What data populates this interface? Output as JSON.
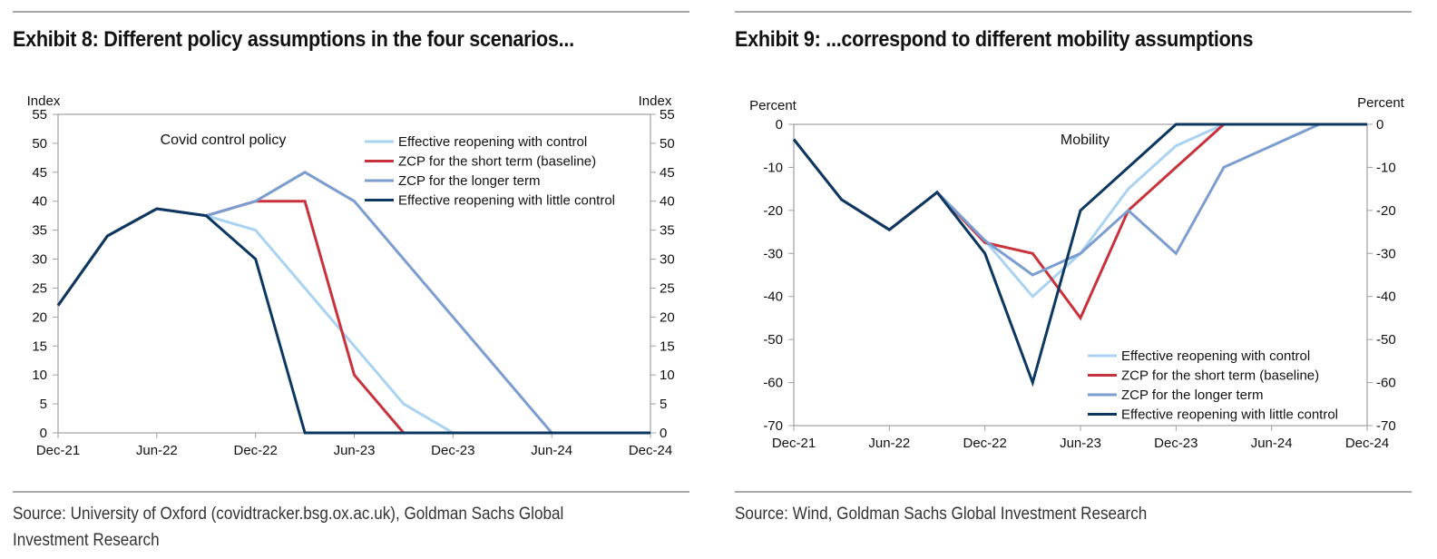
{
  "exhibit8": {
    "title": "Exhibit 8: Different policy assumptions in the four scenarios...",
    "source": "Source: University of Oxford (covidtracker.bsg.ox.ac.uk), Goldman Sachs Global Investment Research"
  },
  "exhibit9": {
    "title": "Exhibit 9: ...correspond to different mobility assumptions",
    "source": "Source: Wind, Goldman Sachs Global Investment Research"
  },
  "colors": {
    "light_blue": "#a9d3f0",
    "red": "#c8323a",
    "mid_blue": "#7b9dcf",
    "navy": "#0c3761",
    "axis": "#a0a0a0"
  },
  "chart_data": [
    {
      "type": "line",
      "title": "Covid control policy",
      "ylabel": "Index",
      "ylabel_right": "Index",
      "ylim": [
        0,
        55
      ],
      "yticks": [
        0,
        5,
        10,
        15,
        20,
        25,
        30,
        35,
        40,
        45,
        50,
        55
      ],
      "xlim": [
        0,
        36
      ],
      "xticks": [
        {
          "x": 0,
          "label": "Dec-21"
        },
        {
          "x": 6,
          "label": "Jun-22"
        },
        {
          "x": 12,
          "label": "Dec-22"
        },
        {
          "x": 18,
          "label": "Jun-23"
        },
        {
          "x": 24,
          "label": "Dec-23"
        },
        {
          "x": 30,
          "label": "Jun-24"
        },
        {
          "x": 36,
          "label": "Dec-24"
        }
      ],
      "legend_position": "top-right",
      "series": [
        {
          "name": "Effective reopening with control",
          "color": "#a9d3f0",
          "x": [
            0,
            3,
            6,
            9,
            12,
            15,
            18,
            21,
            24,
            36
          ],
          "values": [
            22,
            34,
            38.7,
            37.5,
            35,
            25,
            15,
            5,
            0,
            0
          ]
        },
        {
          "name": "ZCP for the short term (baseline)",
          "color": "#c8323a",
          "x": [
            0,
            3,
            6,
            9,
            12,
            15,
            18,
            21,
            36
          ],
          "values": [
            22,
            34,
            38.7,
            37.5,
            40,
            40,
            10,
            0,
            0
          ]
        },
        {
          "name": "ZCP for the longer term",
          "color": "#7b9dcf",
          "x": [
            0,
            3,
            6,
            9,
            12,
            15,
            18,
            30,
            36
          ],
          "values": [
            22,
            34,
            38.7,
            37.5,
            40,
            45,
            40,
            0,
            0
          ]
        },
        {
          "name": "Effective reopening with little control",
          "color": "#0c3761",
          "x": [
            0,
            3,
            6,
            9,
            12,
            15,
            36
          ],
          "values": [
            22,
            34,
            38.7,
            37.5,
            30,
            0,
            0
          ]
        }
      ]
    },
    {
      "type": "line",
      "title": "Mobility",
      "ylabel": "Percent",
      "ylabel_right": "Percent",
      "ylim": [
        -70,
        0
      ],
      "yticks": [
        -70,
        -60,
        -50,
        -40,
        -30,
        -20,
        -10,
        0
      ],
      "xlim": [
        0,
        36
      ],
      "xticks": [
        {
          "x": 0,
          "label": "Dec-21"
        },
        {
          "x": 6,
          "label": "Jun-22"
        },
        {
          "x": 12,
          "label": "Dec-22"
        },
        {
          "x": 18,
          "label": "Jun-23"
        },
        {
          "x": 24,
          "label": "Dec-23"
        },
        {
          "x": 30,
          "label": "Jun-24"
        },
        {
          "x": 36,
          "label": "Dec-24"
        }
      ],
      "legend_position": "bottom-right",
      "series": [
        {
          "name": "Effective reopening with control",
          "color": "#a9d3f0",
          "x": [
            0,
            3,
            6,
            9,
            12,
            15,
            18,
            21,
            24,
            27,
            36
          ],
          "values": [
            -3.5,
            -17.5,
            -24.5,
            -15.8,
            -27,
            -40,
            -30,
            -15,
            -5,
            0,
            0
          ]
        },
        {
          "name": "ZCP for the short term (baseline)",
          "color": "#c8323a",
          "x": [
            0,
            3,
            6,
            9,
            12,
            15,
            18,
            21,
            24,
            27,
            36
          ],
          "values": [
            -3.5,
            -17.5,
            -24.5,
            -15.8,
            -27.5,
            -30,
            -45,
            -20,
            -10,
            0,
            0
          ]
        },
        {
          "name": "ZCP for the longer term",
          "color": "#7b9dcf",
          "x": [
            0,
            3,
            6,
            9,
            12,
            15,
            18,
            21,
            24,
            27,
            33,
            36
          ],
          "values": [
            -3.5,
            -17.5,
            -24.5,
            -15.8,
            -27,
            -35,
            -30,
            -20,
            -30,
            -10,
            0,
            0
          ]
        },
        {
          "name": "Effective reopening with little control",
          "color": "#0c3761",
          "x": [
            0,
            3,
            6,
            9,
            12,
            15,
            18,
            24,
            36
          ],
          "values": [
            -3.5,
            -17.5,
            -24.5,
            -15.8,
            -30,
            -60,
            -20,
            0,
            0
          ]
        }
      ]
    }
  ]
}
